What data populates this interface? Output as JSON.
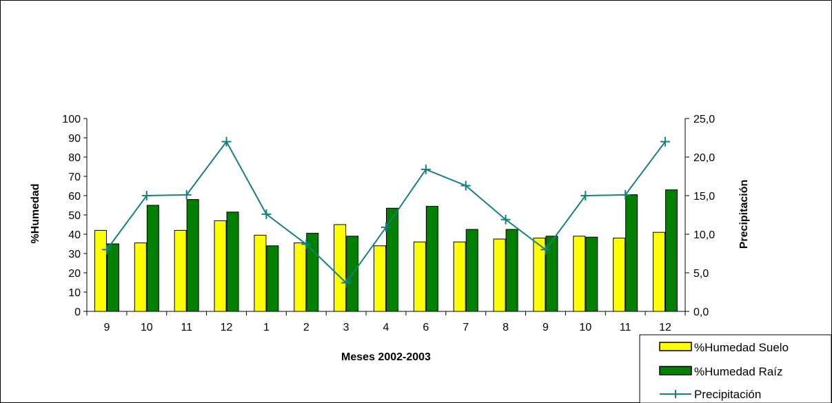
{
  "chart_data": {
    "type": "bar",
    "categories": [
      "9",
      "10",
      "11",
      "12",
      "1",
      "2",
      "3",
      "4",
      "6",
      "7",
      "8",
      "9",
      "10",
      "11",
      "12"
    ],
    "xlabel": "Meses 2002-2003",
    "ylabel": "%Humedad",
    "y2label": "Precipitación",
    "ylim": [
      0,
      100
    ],
    "y2lim": [
      0,
      25
    ],
    "yticks": [
      "0",
      "10",
      "20",
      "30",
      "40",
      "50",
      "60",
      "70",
      "80",
      "90",
      "100"
    ],
    "y2ticks": [
      "0,0",
      "5,0",
      "10,0",
      "15,0",
      "20,0",
      "25,0"
    ],
    "legend_position": "bottom-right",
    "series": [
      {
        "name": "%Humedad Suelo",
        "type": "bar",
        "axis": "left",
        "color": "#FFFF00",
        "values": [
          42,
          35.5,
          42,
          47,
          39.5,
          35.5,
          45,
          34,
          36,
          36,
          37.5,
          38,
          39,
          38,
          41
        ]
      },
      {
        "name": "%Humedad Raíz",
        "type": "bar",
        "axis": "left",
        "color": "#007F00",
        "values": [
          35,
          55,
          58,
          51.5,
          34,
          40.5,
          39,
          53.5,
          54.5,
          42.5,
          42.5,
          39,
          38.5,
          60.5,
          63
        ]
      },
      {
        "name": "Precipitación",
        "type": "line",
        "axis": "right",
        "color": "#138080",
        "values": [
          8,
          15,
          15.1,
          22,
          12.6,
          8.7,
          3.7,
          10.9,
          18.4,
          16.3,
          11.9,
          8,
          15,
          15.1,
          22
        ]
      }
    ]
  }
}
